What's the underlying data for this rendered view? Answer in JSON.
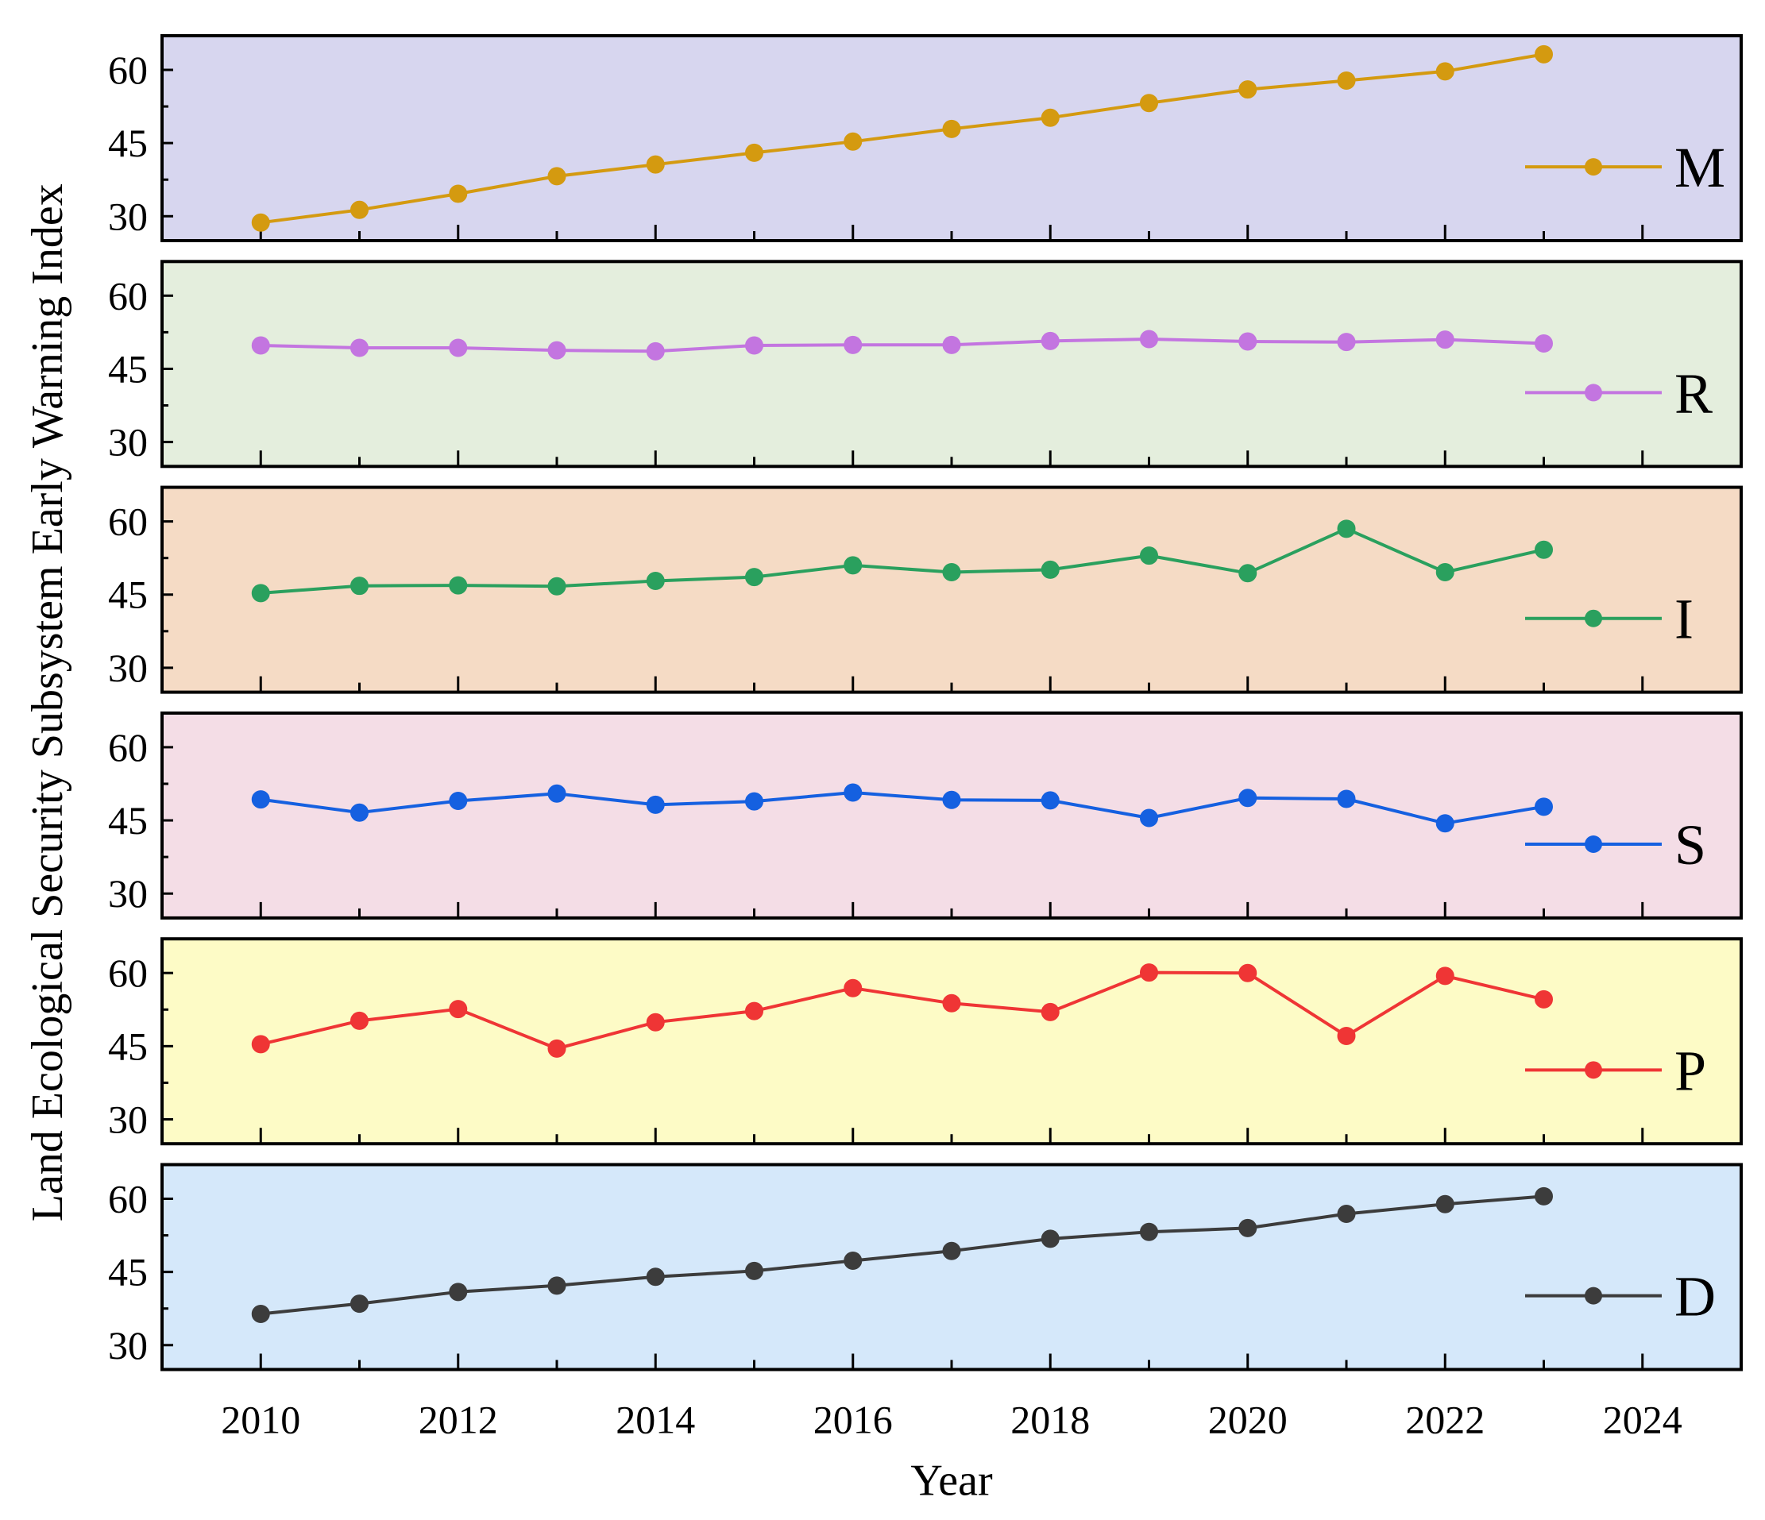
{
  "chart_data": {
    "type": "line",
    "ylabel": "Land Ecological Security Subsystem Early Warning Index",
    "xlabel": "Year",
    "x": [
      2010,
      2011,
      2012,
      2013,
      2014,
      2015,
      2016,
      2017,
      2018,
      2019,
      2020,
      2021,
      2022,
      2023
    ],
    "xlim": [
      2009,
      2025
    ],
    "x_ticks": [
      2010,
      2012,
      2014,
      2016,
      2018,
      2020,
      2022,
      2024
    ],
    "ylim": [
      25,
      67
    ],
    "y_ticks": [
      30,
      45,
      60
    ],
    "legend_position": "right",
    "panels": [
      {
        "name": "M",
        "color": "#d49a10",
        "background": "#d7d6ef",
        "values": [
          28.7,
          31.3,
          34.6,
          38.2,
          40.6,
          43.0,
          45.3,
          47.9,
          50.2,
          53.2,
          56.0,
          57.8,
          59.7,
          63.2
        ]
      },
      {
        "name": "R",
        "color": "#c375e0",
        "background": "#e4eedd",
        "values": [
          49.8,
          49.3,
          49.3,
          48.8,
          48.6,
          49.8,
          49.9,
          49.9,
          50.7,
          51.1,
          50.6,
          50.5,
          51.0,
          50.2
        ]
      },
      {
        "name": "I",
        "color": "#2aa05e",
        "background": "#f5dbc5",
        "values": [
          45.3,
          46.8,
          46.9,
          46.7,
          47.8,
          48.6,
          51.0,
          49.6,
          50.1,
          53.0,
          49.4,
          58.5,
          49.6,
          54.2
        ]
      },
      {
        "name": "S",
        "color": "#1560e0",
        "background": "#f4dde6",
        "values": [
          49.3,
          46.6,
          49.0,
          50.5,
          48.2,
          48.9,
          50.7,
          49.2,
          49.1,
          45.5,
          49.6,
          49.4,
          44.4,
          47.8
        ]
      },
      {
        "name": "P",
        "color": "#ef3535",
        "background": "#fdfbc6",
        "values": [
          45.4,
          50.2,
          52.6,
          44.5,
          49.9,
          52.2,
          56.9,
          53.8,
          52.0,
          60.1,
          60.0,
          47.1,
          59.4,
          54.6
        ]
      },
      {
        "name": "D",
        "color": "#3c3c3c",
        "background": "#d5e8fa",
        "values": [
          36.4,
          38.5,
          40.9,
          42.2,
          44.0,
          45.2,
          47.3,
          49.3,
          51.8,
          53.2,
          54.0,
          56.9,
          58.9,
          60.5
        ]
      }
    ]
  }
}
